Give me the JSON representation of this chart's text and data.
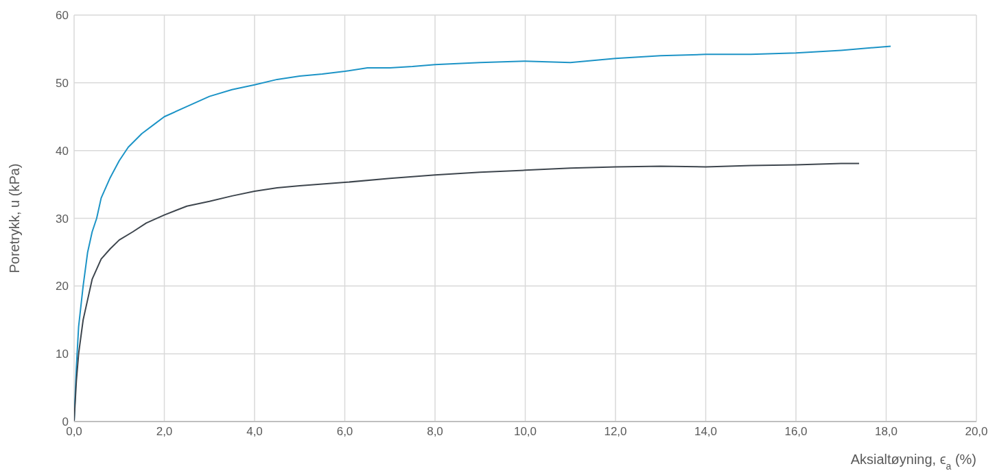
{
  "chart_data": {
    "type": "line",
    "xlabel": "Aksialtøyning, ϵ$_{a}$ (%)",
    "ylabel": "Poretrykk, u (kPa)",
    "series": [
      {
        "color": "#1b93c6",
        "x": [
          0,
          0.05,
          0.1,
          0.2,
          0.3,
          0.4,
          0.5,
          0.6,
          0.8,
          1.0,
          1.2,
          1.5,
          1.8,
          2.0,
          2.5,
          3.0,
          3.5,
          4.0,
          4.5,
          5.0,
          5.5,
          6.0,
          6.5,
          7.0,
          7.5,
          8.0,
          9.0,
          10.0,
          11.0,
          12.0,
          13.0,
          14.0,
          15.0,
          16.0,
          17.0,
          18.1
        ],
        "values": [
          0,
          8,
          14,
          20,
          25,
          28,
          30,
          33,
          36,
          38.5,
          40.5,
          42.5,
          44,
          45,
          46.5,
          48,
          49,
          49.7,
          50.5,
          51,
          51.3,
          51.7,
          52.2,
          52.2,
          52.4,
          52.7,
          53,
          53.2,
          53,
          53.6,
          54,
          54.2,
          54.2,
          54.4,
          54.8,
          55.4
        ]
      },
      {
        "color": "#3d454d",
        "x": [
          0,
          0.05,
          0.1,
          0.2,
          0.3,
          0.4,
          0.5,
          0.6,
          0.8,
          1.0,
          1.3,
          1.6,
          2.0,
          2.5,
          3.0,
          3.5,
          4.0,
          4.5,
          5.0,
          6.0,
          7.0,
          8.0,
          9.0,
          10.0,
          11.0,
          12.0,
          13.0,
          14.0,
          15.0,
          16.0,
          17.0,
          17.4
        ],
        "values": [
          0,
          6,
          10,
          15,
          18,
          21,
          22.5,
          24,
          25.5,
          26.8,
          28,
          29.3,
          30.5,
          31.8,
          32.5,
          33.3,
          34,
          34.5,
          34.8,
          35.3,
          35.9,
          36.4,
          36.8,
          37.1,
          37.4,
          37.6,
          37.7,
          37.6,
          37.8,
          37.9,
          38.1,
          38.1
        ]
      }
    ],
    "xlim": [
      0,
      20
    ],
    "xticks": [
      {
        "value": 0,
        "label": "0,0"
      },
      {
        "value": 2,
        "label": "2,0"
      },
      {
        "value": 4,
        "label": "4,0"
      },
      {
        "value": 6,
        "label": "6,0"
      },
      {
        "value": 8,
        "label": "8,0"
      },
      {
        "value": 10,
        "label": "10,0"
      },
      {
        "value": 12,
        "label": "12,0"
      },
      {
        "value": 14,
        "label": "14,0"
      },
      {
        "value": 16,
        "label": "16,0"
      },
      {
        "value": 18,
        "label": "18,0"
      },
      {
        "value": 20,
        "label": "20,0"
      }
    ],
    "ylim": [
      0,
      60
    ],
    "yticks": [
      0,
      10,
      20,
      30,
      40,
      50,
      60
    ],
    "grid": true,
    "marker": "none",
    "line_style": "solid"
  }
}
